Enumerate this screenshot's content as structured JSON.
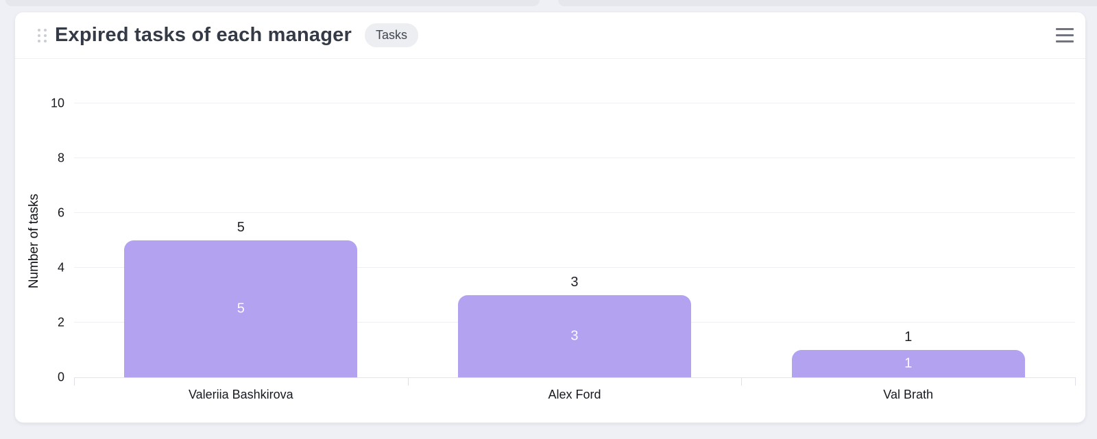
{
  "page": {
    "background_color": "#eef0f5",
    "top_card_remnants": 2
  },
  "card": {
    "title": "Expired tasks of each manager",
    "badge": "Tasks",
    "icons": {
      "drag_handle": "drag-handle-icon (six dots)",
      "menu": "hamburger-menu-icon (three lines)"
    },
    "colors": {
      "card_bg": "#ffffff",
      "title_text": "#353b46",
      "badge_bg": "#edeef2",
      "badge_text": "#40454f",
      "menu_icon": "#70747e",
      "header_border": "#edeff3"
    }
  },
  "chart_data": {
    "type": "bar",
    "title": "Expired tasks of each manager",
    "categories": [
      "Valeriia Bashkirova",
      "Alex Ford",
      "Val Brath"
    ],
    "values": [
      5,
      3,
      1
    ],
    "xlabel": "",
    "ylabel": "Number of tasks",
    "ylim": [
      0,
      10
    ],
    "yticks": [
      0,
      2,
      4,
      6,
      8,
      10
    ],
    "grid": true,
    "legend": null,
    "bar_color": "#b2a2f0",
    "bar_label_above_color": "#1c1f26",
    "bar_label_inside_color": "#fbfbfe",
    "gridline_color": "#eeeef4",
    "axis_line_color": "#e3e3ed"
  }
}
